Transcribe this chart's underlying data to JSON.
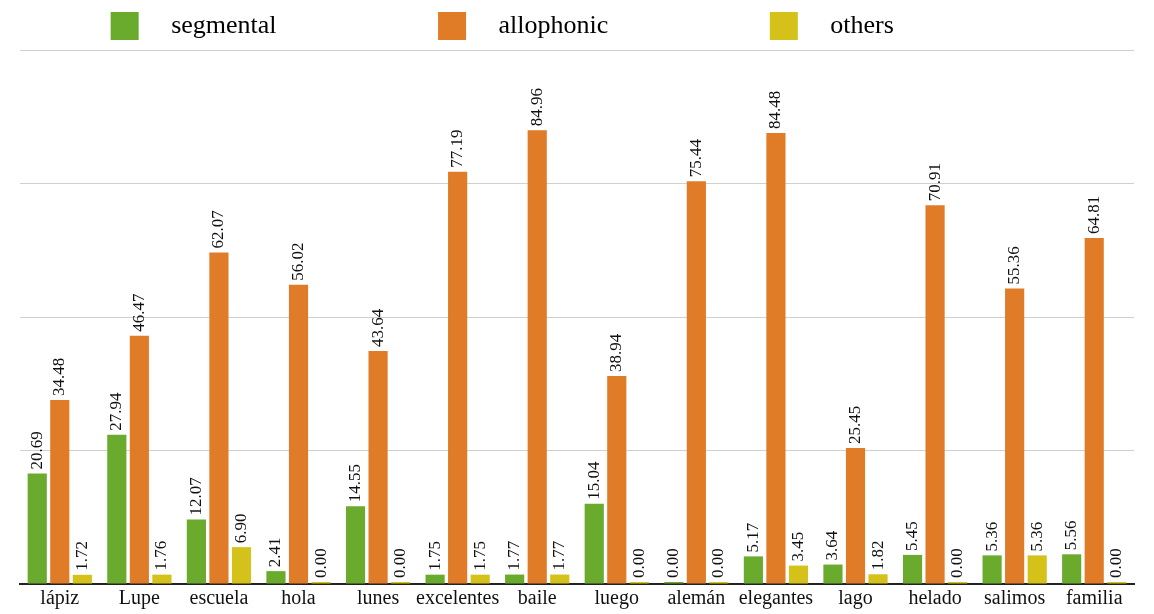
{
  "chart_data": {
    "type": "bar",
    "categories": [
      "lápiz",
      "Lupe",
      "escuela",
      "hola",
      "lunes",
      "excelentes",
      "baile",
      "luego",
      "alemán",
      "elegantes",
      "lago",
      "helado",
      "salimos",
      "familia"
    ],
    "series": [
      {
        "name": "segmental",
        "color": "#6aab2e",
        "values": [
          20.69,
          27.94,
          12.07,
          2.41,
          14.55,
          1.75,
          1.77,
          15.04,
          0.0,
          5.17,
          3.64,
          5.45,
          5.36,
          5.56
        ],
        "value_labels": [
          "20.69",
          "27.94",
          "12.07",
          "2.41",
          "14.55",
          "1.75",
          "1.77",
          "15.04",
          "0.00",
          "5.17",
          "3.64",
          "5.45",
          "5.36",
          "5.56"
        ]
      },
      {
        "name": "allophonic",
        "color": "#e07b27",
        "values": [
          34.48,
          46.47,
          62.07,
          56.02,
          43.64,
          77.19,
          84.96,
          38.94,
          75.44,
          84.48,
          25.45,
          70.91,
          55.36,
          64.81
        ],
        "value_labels": [
          "34.48",
          "46.47",
          "62.07",
          "56.02",
          "43.64",
          "77.19",
          "84.96",
          "38.94",
          "75.44",
          "84.48",
          "25.45",
          "70.91",
          "55.36",
          "64.81"
        ]
      },
      {
        "name": "others",
        "color": "#d4c11a",
        "values": [
          1.72,
          1.76,
          6.9,
          0.0,
          0.0,
          1.75,
          1.77,
          0.0,
          0.0,
          3.45,
          1.82,
          0.0,
          5.36,
          0.0
        ],
        "value_labels": [
          "1.72",
          "1.76",
          "6.90",
          "0.00",
          "0.00",
          "1.75",
          "1.77",
          "0.00",
          "0.00",
          "3.45",
          "1.82",
          "0.00",
          "5.36",
          "0.00"
        ]
      }
    ],
    "ylim": [
      0,
      100
    ],
    "yticks": [
      {
        "value": 0,
        "label": null
      },
      {
        "value": 25,
        "label": null
      },
      {
        "value": 50,
        "label": null
      },
      {
        "value": 75,
        "label": null
      },
      {
        "value": 100,
        "label": null
      }
    ],
    "tick_labels": "x",
    "grid": "y",
    "legend": "top"
  }
}
